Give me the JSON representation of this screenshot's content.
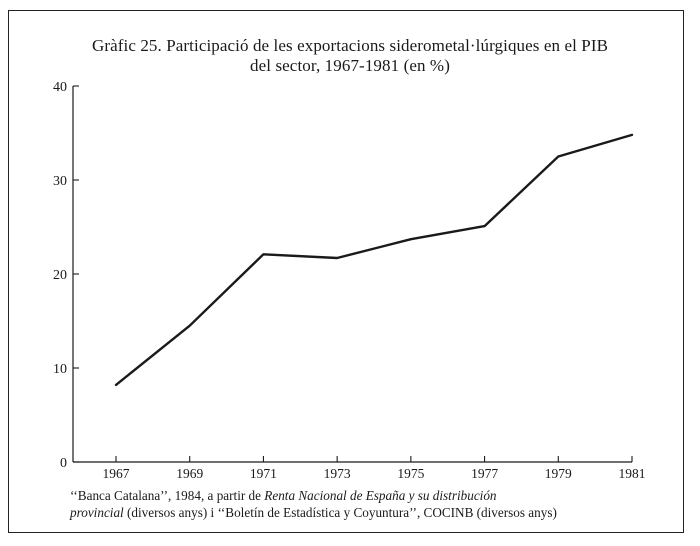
{
  "title_line1": "Gràfic 25. Participació de les exportacions siderometal·lúrgiques en el PIB",
  "title_line2": "del sector, 1967-1981 (en %)",
  "source": {
    "part1": "‘‘Banca Catalana’’, 1984, a partir de ",
    "italic1": "Renta Nacional de España y su distribución",
    "italic2": "provincial",
    "part2": " (diversos anys) i ‘‘Boletín de Estadística y Coyuntura’’, COCINB (diversos anys)"
  },
  "chart_data": {
    "type": "line",
    "title": "Gràfic 25. Participació de les exportacions siderometal·lúrgiques en el PIB del sector, 1967-1981 (en %)",
    "xlabel": "",
    "ylabel": "",
    "x_ticks": [
      "1967",
      "1969",
      "1971",
      "1973",
      "1975",
      "1977",
      "1979",
      "1981"
    ],
    "y_ticks": [
      "0",
      "10",
      "20",
      "30",
      "40"
    ],
    "ylim": [
      0,
      40
    ],
    "xlim": [
      1967,
      1981
    ],
    "grid": false,
    "series": [
      {
        "x": [
          1967,
          1969,
          1971,
          1973,
          1975,
          1977,
          1979,
          1981
        ],
        "y": [
          8.2,
          14.5,
          22.1,
          21.7,
          23.7,
          25.1,
          32.5,
          34.8
        ]
      }
    ],
    "line_color": "#1a1a1a"
  }
}
